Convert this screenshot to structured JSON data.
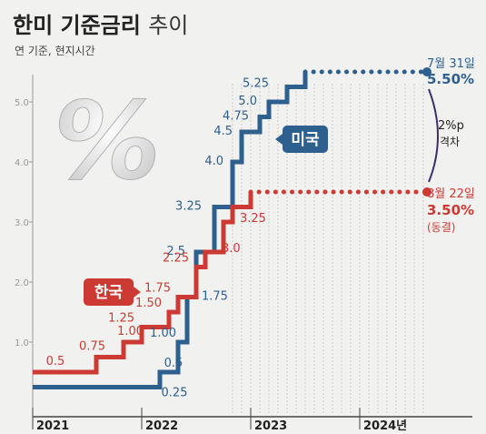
{
  "title": {
    "main": "한미 기준금리",
    "suffix": "추이"
  },
  "subtitle": "연 기준, 현지시간",
  "colors": {
    "us": "#2d5f8f",
    "korea": "#cc3a33",
    "gap": "#3d2f6b",
    "grid": "#bdbdbd",
    "background": "#f1f1ef"
  },
  "chart_data": {
    "type": "line",
    "title": "한미 기준금리 추이",
    "subtitle": "연 기준, 현지시간",
    "y_ticks": [
      "1.0",
      "2.0",
      "3.0",
      "4.0",
      "5.0"
    ],
    "ylim": [
      0,
      5.5
    ],
    "x_labels": [
      "2021",
      "2022",
      "2023",
      "2024년"
    ],
    "xlim": [
      "2021-01",
      "2024-08"
    ],
    "series": [
      {
        "name": "미국",
        "color": "#2d5f8f",
        "points": [
          {
            "x": "2021-01",
            "y": 0.25
          },
          {
            "x": "2022-03",
            "y": 0.5
          },
          {
            "x": "2022-05",
            "y": 1.0
          },
          {
            "x": "2022-06",
            "y": 1.75
          },
          {
            "x": "2022-07",
            "y": 2.5
          },
          {
            "x": "2022-09",
            "y": 3.25
          },
          {
            "x": "2022-11",
            "y": 4.0
          },
          {
            "x": "2022-12",
            "y": 4.5
          },
          {
            "x": "2023-02",
            "y": 4.75
          },
          {
            "x": "2023-03",
            "y": 5.0
          },
          {
            "x": "2023-05",
            "y": 5.25
          },
          {
            "x": "2023-07",
            "y": 5.5
          },
          {
            "x": "2024-08",
            "y": 5.5
          }
        ],
        "step_labels": [
          "0.25",
          "0.5",
          "1.00",
          "1.75",
          "2.5",
          "3.25",
          "4.0",
          "4.5",
          "4.75",
          "5.0",
          "5.25"
        ],
        "end_label": {
          "date": "7월 31일",
          "value": "5.50%"
        }
      },
      {
        "name": "한국",
        "color": "#cc3a33",
        "points": [
          {
            "x": "2021-01",
            "y": 0.5
          },
          {
            "x": "2021-08",
            "y": 0.75
          },
          {
            "x": "2021-11",
            "y": 1.0
          },
          {
            "x": "2022-01",
            "y": 1.25
          },
          {
            "x": "2022-04",
            "y": 1.5
          },
          {
            "x": "2022-05",
            "y": 1.75
          },
          {
            "x": "2022-07",
            "y": 2.25
          },
          {
            "x": "2022-08",
            "y": 2.5
          },
          {
            "x": "2022-10",
            "y": 3.0
          },
          {
            "x": "2022-11",
            "y": 3.25
          },
          {
            "x": "2023-01",
            "y": 3.5
          },
          {
            "x": "2024-08",
            "y": 3.5
          }
        ],
        "step_labels": [
          "0.5",
          "0.75",
          "1.00",
          "1.25",
          "1.50",
          "1.75",
          "2.25",
          "3.0",
          "3.25"
        ],
        "end_label": {
          "date": "8월 22일",
          "value": "3.50%",
          "note": "(동결)"
        }
      }
    ],
    "annotations": [
      {
        "text": "2%p 격차",
        "lines": [
          "2%p",
          "격차"
        ]
      }
    ]
  }
}
